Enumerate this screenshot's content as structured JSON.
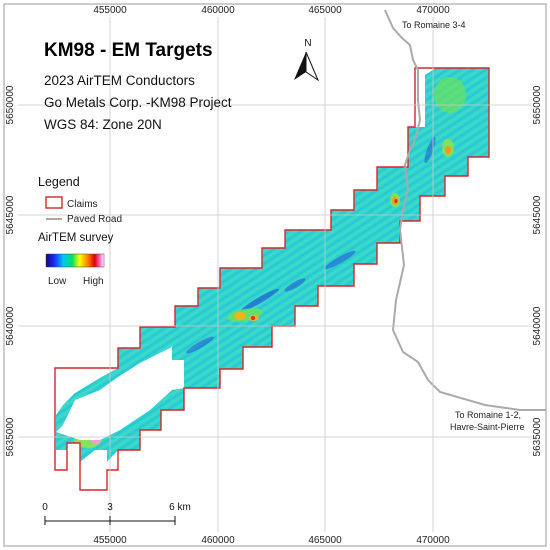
{
  "title": "KM98 - EM Targets",
  "subtitle_lines": [
    "2023 AirTEM Conductors",
    "Go Metals Corp. -KM98 Project",
    "WGS 84: Zone 20N"
  ],
  "north_arrow": {
    "label": "N",
    "icon": "north-arrow-icon"
  },
  "legend": {
    "title": "Legend",
    "claims_label": "Claims",
    "road_label": "Paved Road",
    "survey_title": "AirTEM survey",
    "ramp_low": "Low",
    "ramp_high": "High"
  },
  "road_labels": {
    "north": "To Romaine 3-4",
    "south_line1": "To Romaine 1-2,",
    "south_line2": "Havre-Saint-Pierre"
  },
  "grid": {
    "x_labels": [
      "455000",
      "460000",
      "465000",
      "470000"
    ],
    "y_labels": [
      "5650000",
      "5645000",
      "5640000",
      "5635000"
    ]
  },
  "scale_bar": {
    "labels": [
      "0",
      "3",
      "6 km"
    ]
  },
  "colors": {
    "claims": "#d62728",
    "road": "#aaaaaa",
    "survey_base": "#3ad7d0",
    "grid": "#c8c8c8"
  }
}
